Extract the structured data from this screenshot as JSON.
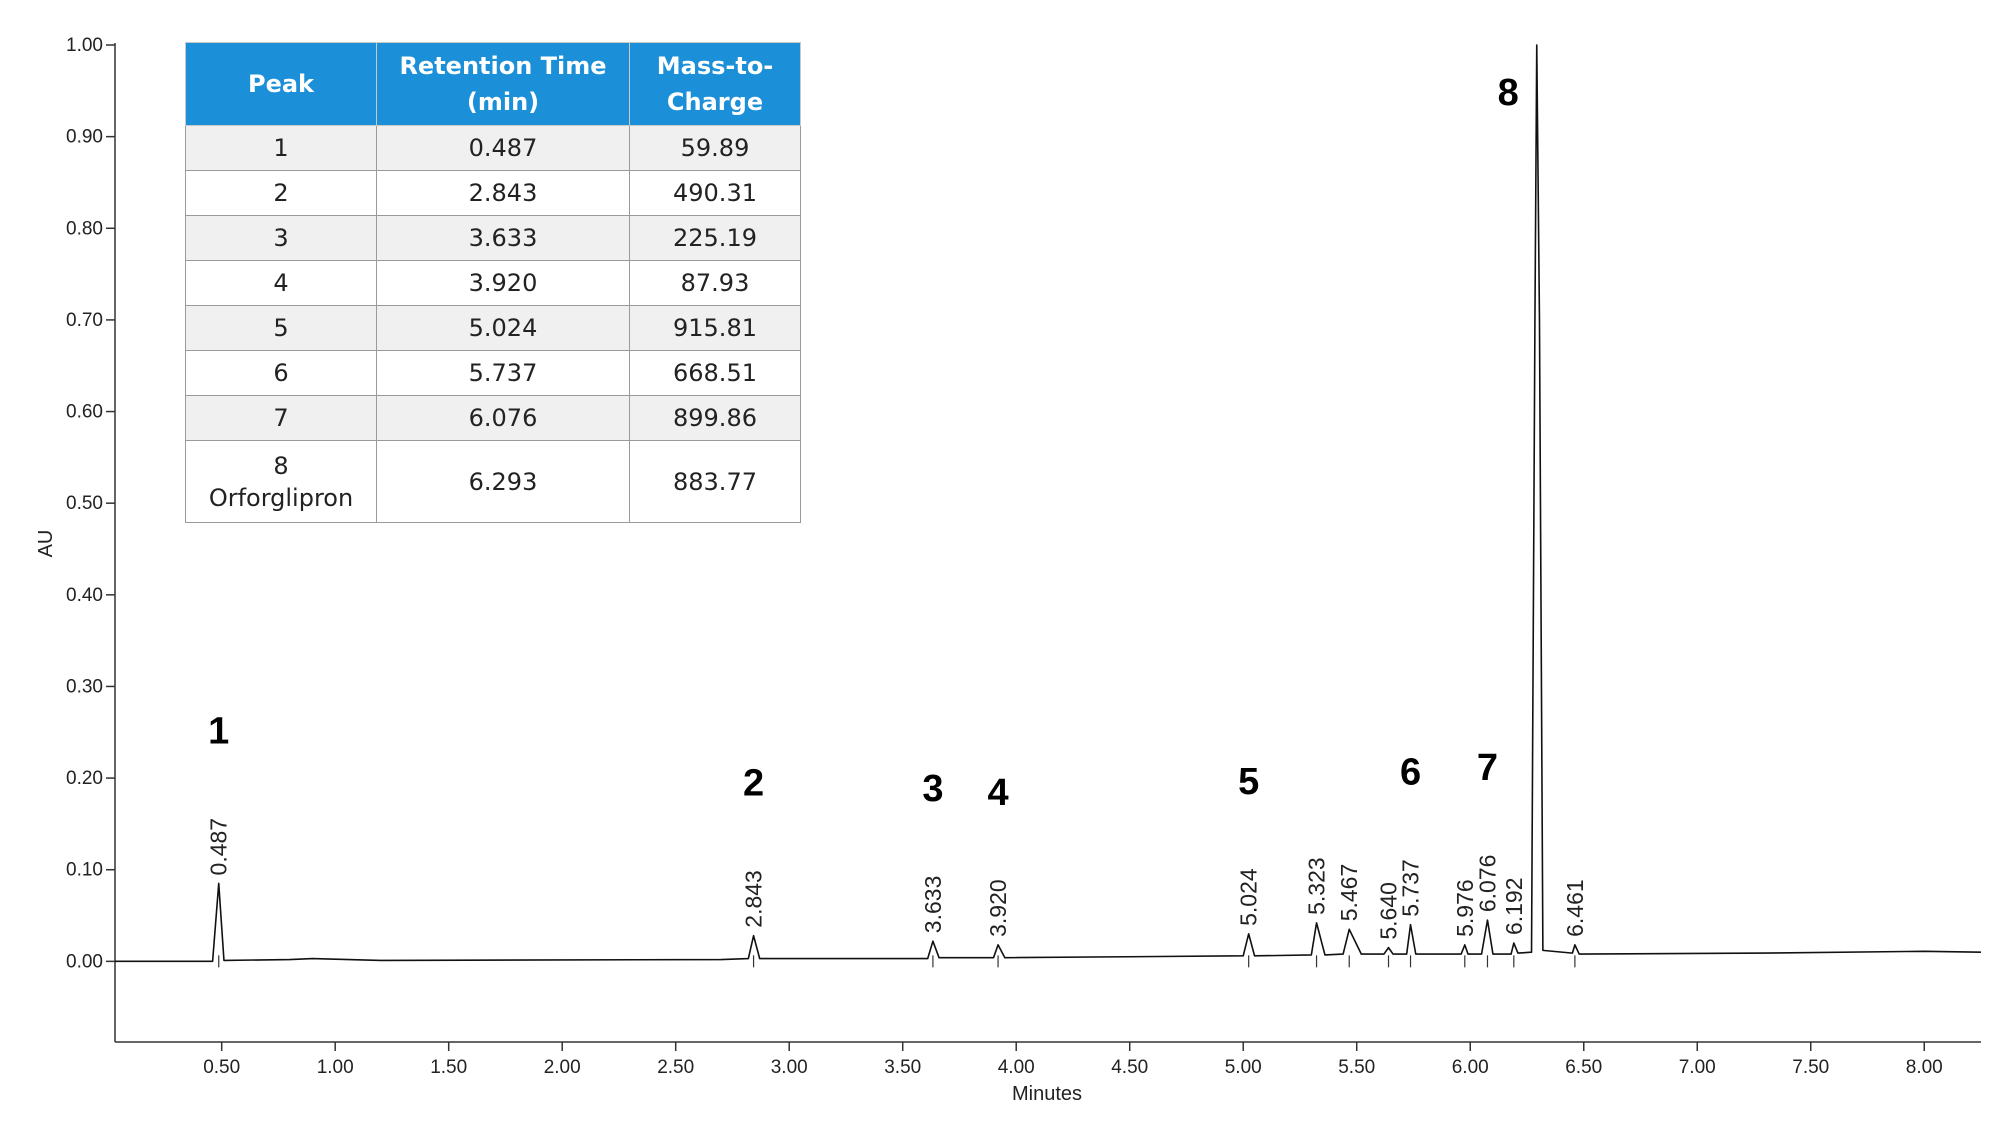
{
  "chart_data": {
    "type": "line",
    "xlabel": "Minutes",
    "ylabel": "AU",
    "line_color": "#111111",
    "xlim": [
      0.03,
      8.25
    ],
    "ylim": [
      -0.088,
      1.0
    ],
    "xticks": [
      {
        "value": 0.5,
        "label": "0.50"
      },
      {
        "value": 1.0,
        "label": "1.00"
      },
      {
        "value": 1.5,
        "label": "1.50"
      },
      {
        "value": 2.0,
        "label": "2.00"
      },
      {
        "value": 2.5,
        "label": "2.50"
      },
      {
        "value": 3.0,
        "label": "3.00"
      },
      {
        "value": 3.5,
        "label": "3.50"
      },
      {
        "value": 4.0,
        "label": "4.00"
      },
      {
        "value": 4.5,
        "label": "4.50"
      },
      {
        "value": 5.0,
        "label": "5.00"
      },
      {
        "value": 5.5,
        "label": "5.50"
      },
      {
        "value": 6.0,
        "label": "6.00"
      },
      {
        "value": 6.5,
        "label": "6.50"
      },
      {
        "value": 7.0,
        "label": "7.00"
      },
      {
        "value": 7.5,
        "label": "7.50"
      },
      {
        "value": 8.0,
        "label": "8.00"
      }
    ],
    "yticks": [
      {
        "value": 0,
        "label": "0.00"
      },
      {
        "value": 0.1,
        "label": "0.10"
      },
      {
        "value": 0.2,
        "label": "0.20"
      },
      {
        "value": 0.3,
        "label": "0.30"
      },
      {
        "value": 0.4,
        "label": "0.40"
      },
      {
        "value": 0.5,
        "label": "0.50"
      },
      {
        "value": 0.6,
        "label": "0.60"
      },
      {
        "value": 0.7,
        "label": "0.70"
      },
      {
        "value": 0.8,
        "label": "0.80"
      },
      {
        "value": 0.9,
        "label": "0.90"
      },
      {
        "value": 1.0,
        "label": "1.00"
      }
    ],
    "x": [
      0.03,
      0.46,
      0.487,
      0.51,
      0.8,
      0.9,
      1.2,
      2.7,
      2.82,
      2.843,
      2.87,
      3.61,
      3.633,
      3.66,
      3.9,
      3.92,
      3.95,
      5.0,
      5.024,
      5.05,
      5.3,
      5.323,
      5.36,
      5.44,
      5.467,
      5.52,
      5.62,
      5.64,
      5.66,
      5.72,
      5.737,
      5.76,
      5.96,
      5.976,
      5.99,
      6.05,
      6.076,
      6.1,
      6.18,
      6.192,
      6.21,
      6.27,
      6.285,
      6.293,
      6.305,
      6.32,
      6.45,
      6.461,
      6.48,
      7.3,
      8.0,
      8.25
    ],
    "values": [
      0,
      0,
      0.085,
      0.001,
      0.002,
      0.003,
      0.001,
      0.002,
      0.003,
      0.028,
      0.003,
      0.003,
      0.022,
      0.004,
      0.004,
      0.018,
      0.004,
      0.006,
      0.03,
      0.006,
      0.007,
      0.042,
      0.007,
      0.008,
      0.035,
      0.008,
      0.008,
      0.015,
      0.008,
      0.008,
      0.04,
      0.008,
      0.008,
      0.018,
      0.008,
      0.008,
      0.045,
      0.008,
      0.008,
      0.02,
      0.009,
      0.01,
      0.7,
      1.0,
      0.7,
      0.012,
      0.009,
      0.018,
      0.008,
      0.009,
      0.011,
      0.01
    ],
    "peaks": [
      {
        "time": 0.487,
        "time_label": "0.487",
        "number": "1"
      },
      {
        "time": 2.843,
        "time_label": "2.843",
        "number": "2"
      },
      {
        "time": 3.633,
        "time_label": "3.633",
        "number": "3"
      },
      {
        "time": 3.92,
        "time_label": "3.920",
        "number": "4"
      },
      {
        "time": 5.024,
        "time_label": "5.024",
        "number": "5"
      },
      {
        "time": 5.323,
        "time_label": "5.323"
      },
      {
        "time": 5.467,
        "time_label": "5.467"
      },
      {
        "time": 5.64,
        "time_label": "5.640"
      },
      {
        "time": 5.737,
        "time_label": "5.737",
        "number": "6"
      },
      {
        "time": 5.976,
        "time_label": "5.976"
      },
      {
        "time": 6.076,
        "time_label": "6.076",
        "number": "7"
      },
      {
        "time": 6.192,
        "time_label": "6.192"
      },
      {
        "time": 6.293,
        "number": "8"
      },
      {
        "time": 6.461,
        "time_label": "6.461"
      }
    ]
  },
  "table": {
    "header": [
      "Peak",
      "Retention Time (min)",
      "Mass-to-Charge"
    ],
    "rows": [
      [
        "1",
        "0.487",
        "59.89"
      ],
      [
        "2",
        "2.843",
        "490.31"
      ],
      [
        "3",
        "3.633",
        "225.19"
      ],
      [
        "4",
        "3.920",
        "87.93"
      ],
      [
        "5",
        "5.024",
        "915.81"
      ],
      [
        "6",
        "5.737",
        "668.51"
      ],
      [
        "7",
        "6.076",
        "899.86"
      ],
      [
        "8\nOrforglipron",
        "6.293",
        "883.77"
      ]
    ]
  }
}
